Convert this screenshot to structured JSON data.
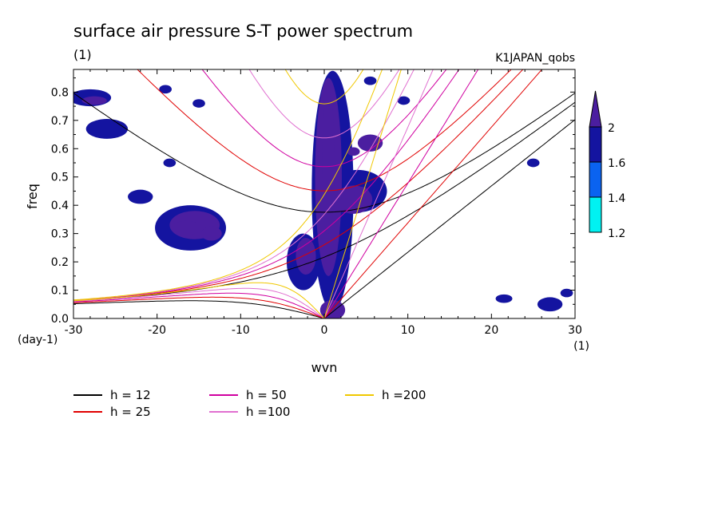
{
  "chart_data": {
    "type": "heatmap",
    "title": "surface air pressure S-T power spectrum",
    "subtitle_left": "(1)",
    "subtitle_right": "K1JAPAN_qobs",
    "xlabel": "wvn",
    "ylabel": "freq",
    "x_unit": "(1)",
    "y_unit": "(day-1)",
    "xlim": [
      -30,
      30
    ],
    "ylim": [
      0.0,
      0.88
    ],
    "xticks": [
      "-30",
      "-20",
      "-10",
      "0",
      "10",
      "20",
      "30"
    ],
    "xtick_values": [
      -30,
      -20,
      -10,
      0,
      10,
      20,
      30
    ],
    "yticks": [
      "0.0",
      "0.1",
      "0.2",
      "0.3",
      "0.4",
      "0.5",
      "0.6",
      "0.7",
      "0.8"
    ],
    "ytick_values": [
      0.0,
      0.1,
      0.2,
      0.3,
      0.4,
      0.5,
      0.6,
      0.7,
      0.8
    ],
    "colorbar": {
      "levels": [
        1.2,
        1.4,
        1.6,
        2.0
      ],
      "labels": [
        "1.2",
        "1.4",
        "1.6",
        "2"
      ],
      "colors": [
        "#00f2f2",
        "#0a63f0",
        "#1414a0",
        "#4b1ea0"
      ]
    },
    "contour_regions": [
      {
        "x": 0.5,
        "y": 0.55,
        "w": 1.5,
        "h": 0.5,
        "level": 2
      },
      {
        "x": 0.8,
        "y": 0.02,
        "w": 2.2,
        "h": 0.05,
        "level": 2
      },
      {
        "x": -1.8,
        "y": 0.23,
        "w": 1.1,
        "h": 0.07,
        "level": 2
      },
      {
        "x": 2.5,
        "y": 0.4,
        "w": 2.5,
        "h": 0.05,
        "level": 2
      },
      {
        "x": 4.5,
        "y": 0.44,
        "w": 1.8,
        "h": 0.05,
        "level": 2
      },
      {
        "x": 3.5,
        "y": 0.59,
        "w": 1.5,
        "h": 0.03,
        "level": 2
      },
      {
        "x": -16.5,
        "y": 0.32,
        "w": 3.5,
        "h": 0.05,
        "level": 2
      },
      {
        "x": -13.5,
        "y": 0.3,
        "w": 2.5,
        "h": 0.05,
        "level": 2
      },
      {
        "x": 0.5,
        "y": 0.5,
        "w": 3.2,
        "h": 0.7,
        "level": 1.6
      },
      {
        "x": -2.2,
        "y": 0.22,
        "w": 2.4,
        "h": 0.13,
        "level": 1.6
      },
      {
        "x": 1.0,
        "y": 0.03,
        "w": 3.0,
        "h": 0.07,
        "level": 1.6
      },
      {
        "x": 3.5,
        "y": 0.42,
        "w": 4.5,
        "h": 0.1,
        "level": 1.6
      },
      {
        "x": 5.5,
        "y": 0.62,
        "w": 3.0,
        "h": 0.06,
        "level": 1.6
      },
      {
        "x": -15.5,
        "y": 0.33,
        "w": 6.0,
        "h": 0.1,
        "level": 1.6
      },
      {
        "x": -27.5,
        "y": 0.77,
        "w": 3.0,
        "h": 0.03,
        "level": 1.6
      },
      {
        "x": 1.0,
        "y": 0.45,
        "w": 5.0,
        "h": 0.85,
        "level": 1.4
      },
      {
        "x": -2.5,
        "y": 0.2,
        "w": 4.0,
        "h": 0.2,
        "level": 1.4
      },
      {
        "x": 4.0,
        "y": 0.45,
        "w": 7.0,
        "h": 0.15,
        "level": 1.4
      },
      {
        "x": -16.0,
        "y": 0.32,
        "w": 8.5,
        "h": 0.16,
        "level": 1.4
      },
      {
        "x": -26.0,
        "y": 0.67,
        "w": 5.0,
        "h": 0.07,
        "level": 1.4
      },
      {
        "x": -28.0,
        "y": 0.78,
        "w": 5.0,
        "h": 0.06,
        "level": 1.4
      },
      {
        "x": -22.0,
        "y": 0.43,
        "w": 3.0,
        "h": 0.05,
        "level": 1.4
      },
      {
        "x": 27.0,
        "y": 0.05,
        "w": 3.0,
        "h": 0.05,
        "level": 1.4
      },
      {
        "x": 2.0,
        "y": 0.22,
        "w": 1.2,
        "h": 0.04,
        "level": 1.4
      },
      {
        "x": 1.5,
        "y": 0.28,
        "w": 1.2,
        "h": 0.04,
        "level": 1.4
      },
      {
        "x": -19.0,
        "y": 0.81,
        "w": 1.5,
        "h": 0.03,
        "level": 1.4
      },
      {
        "x": -18.5,
        "y": 0.55,
        "w": 1.5,
        "h": 0.03,
        "level": 1.4
      },
      {
        "x": -15.0,
        "y": 0.76,
        "w": 1.5,
        "h": 0.03,
        "level": 1.4
      },
      {
        "x": 5.5,
        "y": 0.84,
        "w": 1.5,
        "h": 0.03,
        "level": 1.4
      },
      {
        "x": 9.5,
        "y": 0.77,
        "w": 1.5,
        "h": 0.03,
        "level": 1.4
      },
      {
        "x": 25.0,
        "y": 0.55,
        "w": 1.5,
        "h": 0.03,
        "level": 1.4
      },
      {
        "x": 21.5,
        "y": 0.07,
        "w": 2.0,
        "h": 0.03,
        "level": 1.4
      },
      {
        "x": 29.0,
        "y": 0.09,
        "w": 1.5,
        "h": 0.03,
        "level": 1.4
      }
    ],
    "dispersion_curves": [
      {
        "label": "h = 12",
        "h": 12,
        "color": "#000000"
      },
      {
        "label": "h = 25",
        "h": 25,
        "color": "#e00000"
      },
      {
        "label": "h = 50",
        "h": 50,
        "color": "#d000a0"
      },
      {
        "label": "h =100",
        "h": 100,
        "color": "#e070d0"
      },
      {
        "label": "h =200",
        "h": 200,
        "color": "#f0c800"
      }
    ]
  }
}
